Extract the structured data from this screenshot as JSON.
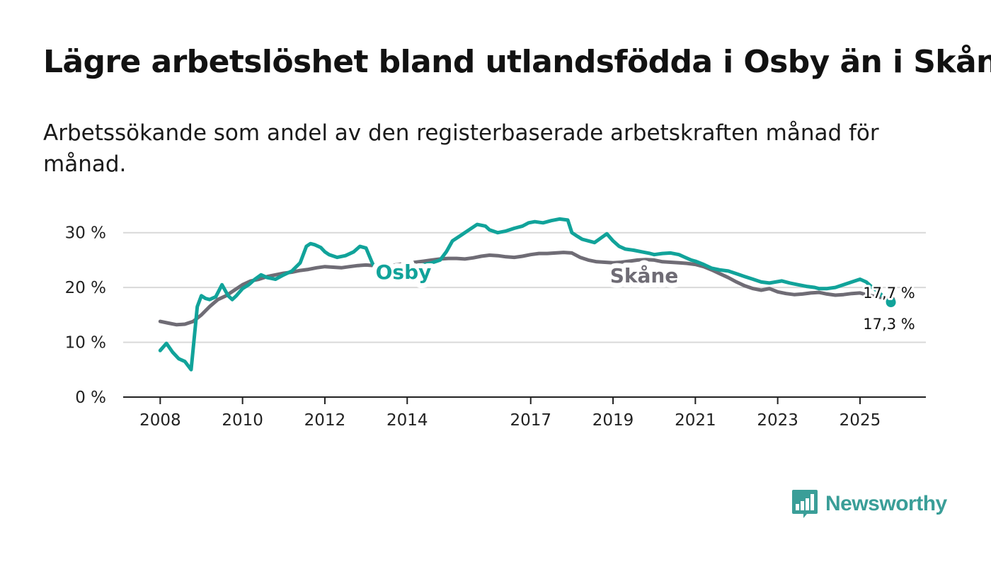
{
  "title": "Lägre arbetslöshet bland utlandsfödda i Osby än i Skåne",
  "subtitle": "Arbetssökande som andel av den registerbaserade arbetskraften månad för månad.",
  "brand": "Newsworthy",
  "colors": {
    "osby": "#11a39a",
    "skane": "#6f6c75",
    "grid": "#d9d9d9",
    "axis": "#222222",
    "brand": "#3a9e98"
  },
  "chart_data": {
    "type": "line",
    "title": "Lägre arbetslöshet bland utlandsfödda i Osby än i Skåne",
    "xlabel": "",
    "ylabel": "",
    "ylim": [
      0,
      35
    ],
    "xlim": [
      2007.1,
      2026.6
    ],
    "yticks": [
      0,
      10,
      20,
      30
    ],
    "ytick_labels": [
      "0 %",
      "10 %",
      "20 %",
      "30 %"
    ],
    "xticks": [
      2008,
      2010,
      2012,
      2014,
      2017,
      2019,
      2021,
      2023,
      2025
    ],
    "xtick_labels": [
      "2008",
      "2010",
      "2012",
      "2014",
      "2017",
      "2019",
      "2021",
      "2023",
      "2025"
    ],
    "series": [
      {
        "name": "Osby",
        "label": "Osby",
        "end_label": "17,3 %",
        "color": "#11a39a",
        "x": [
          2008.0,
          2008.15,
          2008.3,
          2008.45,
          2008.6,
          2008.75,
          2008.9,
          2009.0,
          2009.1,
          2009.2,
          2009.35,
          2009.5,
          2009.65,
          2009.75,
          2009.85,
          2010.0,
          2010.15,
          2010.3,
          2010.45,
          2010.6,
          2010.8,
          2011.0,
          2011.2,
          2011.4,
          2011.55,
          2011.65,
          2011.75,
          2011.9,
          2012.0,
          2012.1,
          2012.3,
          2012.5,
          2012.7,
          2012.85,
          2013.0,
          2013.15,
          2013.3,
          2013.45,
          2013.6,
          2013.75,
          2014.0,
          2014.3,
          2014.6,
          2014.8,
          2014.95,
          2015.1,
          2015.3,
          2015.5,
          2015.7,
          2015.9,
          2016.0,
          2016.2,
          2016.4,
          2016.6,
          2016.8,
          2016.95,
          2017.1,
          2017.3,
          2017.5,
          2017.7,
          2017.9,
          2018.0,
          2018.1,
          2018.25,
          2018.4,
          2018.55,
          2018.7,
          2018.85,
          2019.0,
          2019.15,
          2019.3,
          2019.5,
          2019.7,
          2019.9,
          2020.0,
          2020.2,
          2020.4,
          2020.6,
          2020.75,
          2020.9,
          2021.0,
          2021.2,
          2021.4,
          2021.6,
          2021.8,
          2022.0,
          2022.2,
          2022.4,
          2022.6,
          2022.8,
          2022.95,
          2023.1,
          2023.3,
          2023.5,
          2023.7,
          2023.9,
          2024.0,
          2024.2,
          2024.4,
          2024.6,
          2024.8,
          2025.0,
          2025.15,
          2025.3,
          2025.45,
          2025.6,
          2025.75
        ],
        "y": [
          8.5,
          9.8,
          8.2,
          7.0,
          6.5,
          5.0,
          16.5,
          18.5,
          18.0,
          17.8,
          18.3,
          20.5,
          18.5,
          17.8,
          18.5,
          19.8,
          20.5,
          21.5,
          22.3,
          21.8,
          21.5,
          22.3,
          23.0,
          24.5,
          27.5,
          28.0,
          27.8,
          27.3,
          26.5,
          26.0,
          25.5,
          25.8,
          26.5,
          27.5,
          27.2,
          24.5,
          22.5,
          22.3,
          22.5,
          23.0,
          23.5,
          24.0,
          24.5,
          25.0,
          26.5,
          28.5,
          29.5,
          30.5,
          31.5,
          31.2,
          30.5,
          30.0,
          30.3,
          30.8,
          31.2,
          31.8,
          32.0,
          31.8,
          32.2,
          32.5,
          32.3,
          30.0,
          29.5,
          28.8,
          28.5,
          28.2,
          29.0,
          29.8,
          28.5,
          27.5,
          27.0,
          26.8,
          26.5,
          26.2,
          26.0,
          26.2,
          26.3,
          26.0,
          25.5,
          25.0,
          24.8,
          24.2,
          23.5,
          23.2,
          23.0,
          22.5,
          22.0,
          21.5,
          21.0,
          20.8,
          21.0,
          21.2,
          20.8,
          20.5,
          20.2,
          20.0,
          19.8,
          19.8,
          20.0,
          20.5,
          21.0,
          21.5,
          21.0,
          20.0,
          19.2,
          18.0,
          17.3
        ]
      },
      {
        "name": "Skåne",
        "label": "Skåne",
        "end_label": "17,7 %",
        "color": "#6f6c75",
        "x": [
          2008.0,
          2008.2,
          2008.4,
          2008.6,
          2008.8,
          2009.0,
          2009.2,
          2009.4,
          2009.6,
          2009.8,
          2010.0,
          2010.2,
          2010.4,
          2010.6,
          2010.8,
          2011.0,
          2011.2,
          2011.4,
          2011.6,
          2011.8,
          2012.0,
          2012.2,
          2012.4,
          2012.6,
          2012.8,
          2013.0,
          2013.2,
          2013.4,
          2013.6,
          2013.8,
          2014.0,
          2014.2,
          2014.4,
          2014.6,
          2014.8,
          2015.0,
          2015.2,
          2015.4,
          2015.6,
          2015.8,
          2016.0,
          2016.2,
          2016.4,
          2016.6,
          2016.8,
          2017.0,
          2017.2,
          2017.4,
          2017.6,
          2017.8,
          2018.0,
          2018.2,
          2018.4,
          2018.6,
          2018.8,
          2019.0,
          2019.2,
          2019.4,
          2019.6,
          2019.8,
          2020.0,
          2020.2,
          2020.4,
          2020.6,
          2020.8,
          2021.0,
          2021.2,
          2021.4,
          2021.6,
          2021.8,
          2022.0,
          2022.2,
          2022.4,
          2022.6,
          2022.8,
          2023.0,
          2023.2,
          2023.4,
          2023.6,
          2023.8,
          2024.0,
          2024.2,
          2024.4,
          2024.6,
          2024.8,
          2025.0,
          2025.2,
          2025.4,
          2025.6,
          2025.75
        ],
        "y": [
          13.8,
          13.5,
          13.2,
          13.3,
          13.8,
          15.0,
          16.5,
          17.8,
          18.5,
          19.5,
          20.5,
          21.2,
          21.5,
          22.0,
          22.3,
          22.6,
          22.8,
          23.1,
          23.3,
          23.6,
          23.8,
          23.7,
          23.6,
          23.8,
          24.0,
          24.1,
          24.0,
          23.9,
          24.0,
          24.2,
          24.4,
          24.6,
          24.8,
          25.0,
          25.2,
          25.3,
          25.3,
          25.2,
          25.4,
          25.7,
          25.9,
          25.8,
          25.6,
          25.5,
          25.7,
          26.0,
          26.2,
          26.2,
          26.3,
          26.4,
          26.3,
          25.5,
          25.0,
          24.7,
          24.6,
          24.5,
          24.6,
          24.8,
          25.0,
          25.1,
          25.0,
          24.7,
          24.6,
          24.5,
          24.4,
          24.2,
          23.8,
          23.2,
          22.5,
          21.8,
          21.0,
          20.3,
          19.8,
          19.5,
          19.8,
          19.2,
          18.9,
          18.7,
          18.8,
          19.0,
          19.1,
          18.8,
          18.6,
          18.7,
          18.9,
          19.0,
          18.6,
          18.3,
          18.1,
          17.7
        ]
      }
    ]
  }
}
